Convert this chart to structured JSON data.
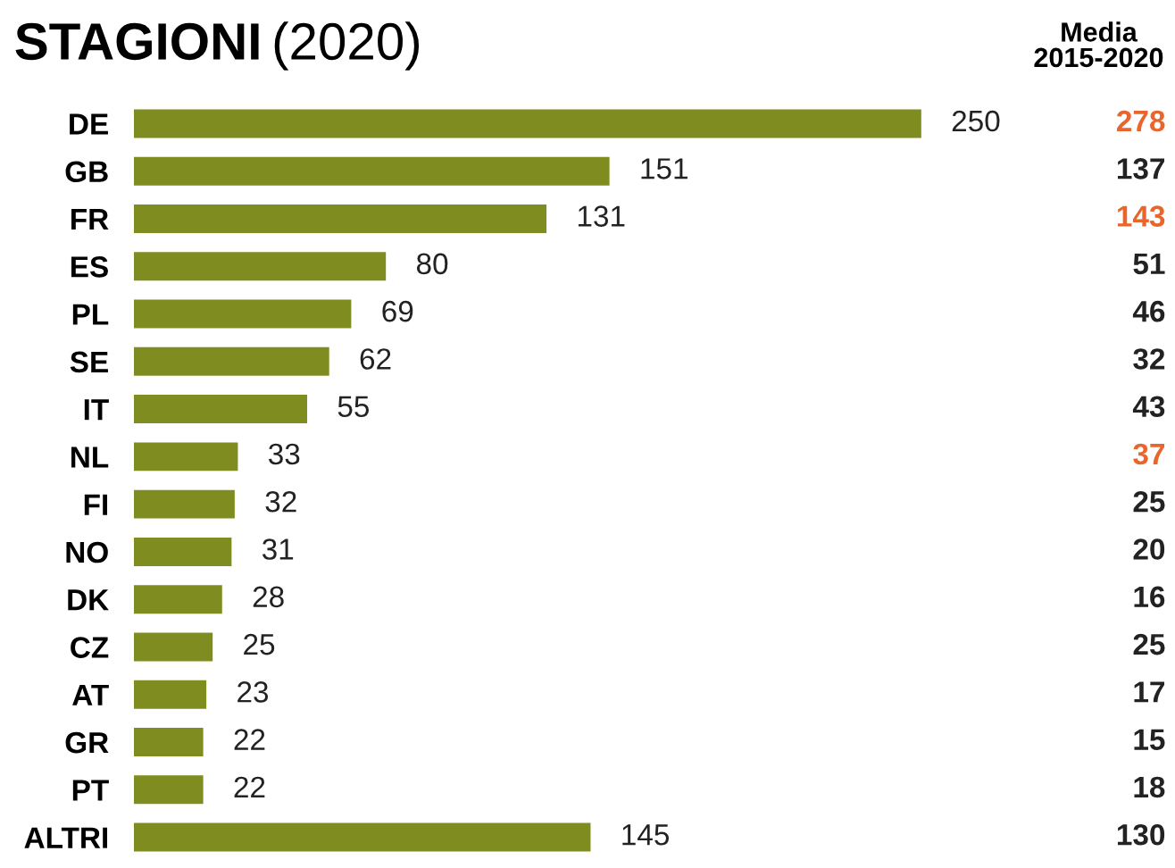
{
  "chart_data": {
    "type": "bar",
    "orientation": "horizontal",
    "title": "STAGIONI (2020)",
    "categories": [
      "DE",
      "GB",
      "FR",
      "ES",
      "PL",
      "SE",
      "IT",
      "NL",
      "FI",
      "NO",
      "DK",
      "CZ",
      "AT",
      "GR",
      "PT",
      "ALTRI"
    ],
    "values": [
      250,
      151,
      131,
      80,
      69,
      62,
      55,
      33,
      32,
      31,
      28,
      25,
      23,
      22,
      22,
      145
    ],
    "color": "#7f8c1f",
    "data_labels": true,
    "grid": false,
    "legend": false,
    "annotations": [
      "Media\n2015-2020",
      "278",
      "137",
      "143",
      "51",
      "46",
      "32",
      "43",
      "37",
      "25",
      "20",
      "16",
      "25",
      "17",
      "15",
      "18",
      "130"
    ]
  }
}
